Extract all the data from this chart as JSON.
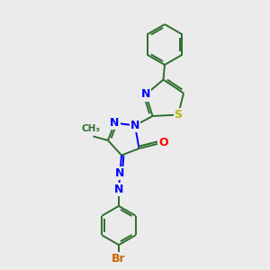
{
  "background_color": "#ebebeb",
  "bond_color": "#2d6e2d",
  "N_color": "#0000ff",
  "O_color": "#ff0000",
  "S_color": "#b8b800",
  "Br_color": "#cc6600",
  "C_color": "#2d6e2d",
  "figsize": [
    3.0,
    3.0
  ],
  "dpi": 100,
  "xlim": [
    0,
    10
  ],
  "ylim": [
    0,
    10
  ],
  "bond_lw": 1.4,
  "font_size": 9
}
